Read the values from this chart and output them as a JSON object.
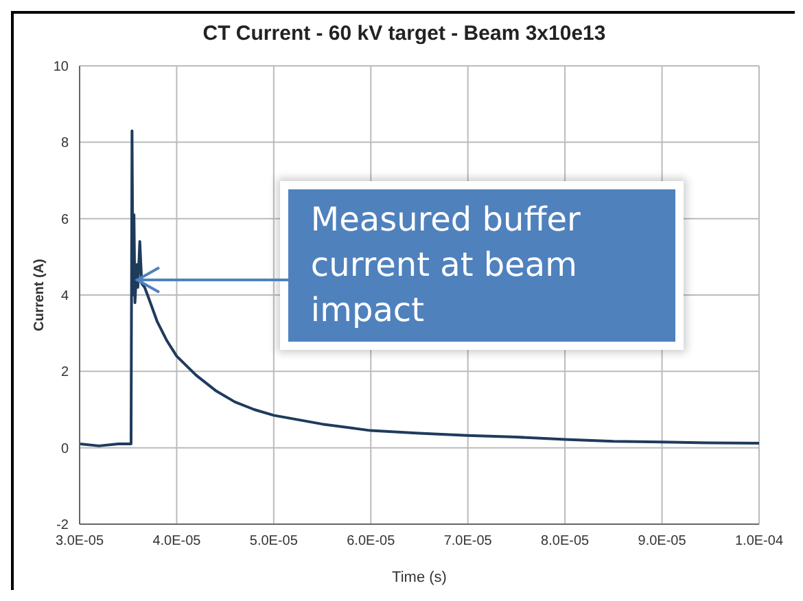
{
  "chart_data": {
    "type": "line",
    "title": "CT Current - 60 kV target - Beam 3x10e13",
    "xlabel": "Time (s)",
    "ylabel": "Current (A)",
    "x": [
      3e-05,
      3.2e-05,
      3.4e-05,
      3.53e-05,
      3.54e-05,
      3.55e-05,
      3.56e-05,
      3.57e-05,
      3.59e-05,
      3.6e-05,
      3.62e-05,
      3.64e-05,
      3.67e-05,
      3.7e-05,
      3.8e-05,
      3.9e-05,
      4e-05,
      4.2e-05,
      4.4e-05,
      4.6e-05,
      4.8e-05,
      5e-05,
      5.5e-05,
      6e-05,
      6.5e-05,
      7e-05,
      7.5e-05,
      8e-05,
      8.5e-05,
      9e-05,
      9.5e-05,
      0.0001
    ],
    "series": [
      {
        "color": "#1f3b5c",
        "values": [
          0.1,
          0.05,
          0.1,
          0.1,
          8.3,
          4.0,
          6.1,
          3.8,
          4.8,
          4.2,
          5.4,
          4.3,
          4.2,
          4.0,
          3.3,
          2.8,
          2.4,
          1.9,
          1.5,
          1.2,
          1.0,
          0.85,
          0.62,
          0.45,
          0.38,
          0.32,
          0.28,
          0.22,
          0.17,
          0.15,
          0.13,
          0.12
        ]
      }
    ],
    "xlim": [
      3e-05,
      0.0001
    ],
    "xticks": [
      {
        "value": 3e-05,
        "label": "3.0E-05"
      },
      {
        "value": 4e-05,
        "label": "4.0E-05"
      },
      {
        "value": 5e-05,
        "label": "5.0E-05"
      },
      {
        "value": 6e-05,
        "label": "6.0E-05"
      },
      {
        "value": 7e-05,
        "label": "7.0E-05"
      },
      {
        "value": 8e-05,
        "label": "8.0E-05"
      },
      {
        "value": 9e-05,
        "label": "9.0E-05"
      },
      {
        "value": 0.0001,
        "label": "1.0E-04"
      }
    ],
    "ylim": [
      -2,
      10
    ],
    "yticks": [
      -2,
      0,
      2,
      4,
      6,
      8,
      10
    ],
    "grid": true,
    "legend": false,
    "marker": "none",
    "line_style": "solid",
    "annotations": [
      {
        "text": "Measured buffer current at beam impact",
        "x": 3.6e-05,
        "y": 4.4
      }
    ]
  }
}
